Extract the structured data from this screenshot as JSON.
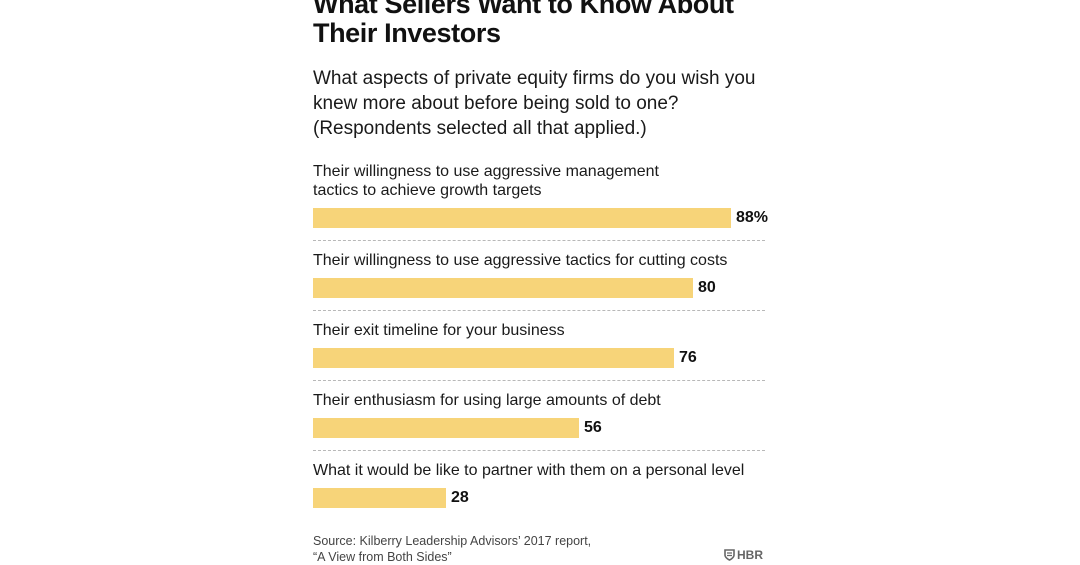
{
  "title": "What Sellers Want to Know About\nTheir Investors",
  "subtitle": "What aspects of private equity firms do you wish you\nknew more about before being sold to one?\n(Respondents selected all that applied.)",
  "colors": {
    "bar": "#f7d479",
    "divider": "#b8b8b8",
    "text": "#111111"
  },
  "chart_data": {
    "type": "bar",
    "orientation": "horizontal",
    "title": "What Sellers Want to Know About Their Investors",
    "categories": [
      "Their willingness to use aggressive management\ntactics to achieve growth targets",
      "Their willingness to use aggressive tactics for cutting costs",
      "Their exit timeline for your business",
      "Their enthusiasm for using large amounts of debt",
      "What it would be like to partner with them on a personal level"
    ],
    "values": [
      88,
      80,
      76,
      56,
      28
    ],
    "value_labels": [
      "88%",
      "80",
      "76",
      "56",
      "28"
    ],
    "unit": "%",
    "xlim": [
      0,
      100
    ],
    "grid": false
  },
  "source": "Source: Kilberry Leadership Advisors’ 2017 report,\n“A View from Both Sides”",
  "logo": {
    "icon": "hbr-shield-icon",
    "text": "HBR"
  }
}
